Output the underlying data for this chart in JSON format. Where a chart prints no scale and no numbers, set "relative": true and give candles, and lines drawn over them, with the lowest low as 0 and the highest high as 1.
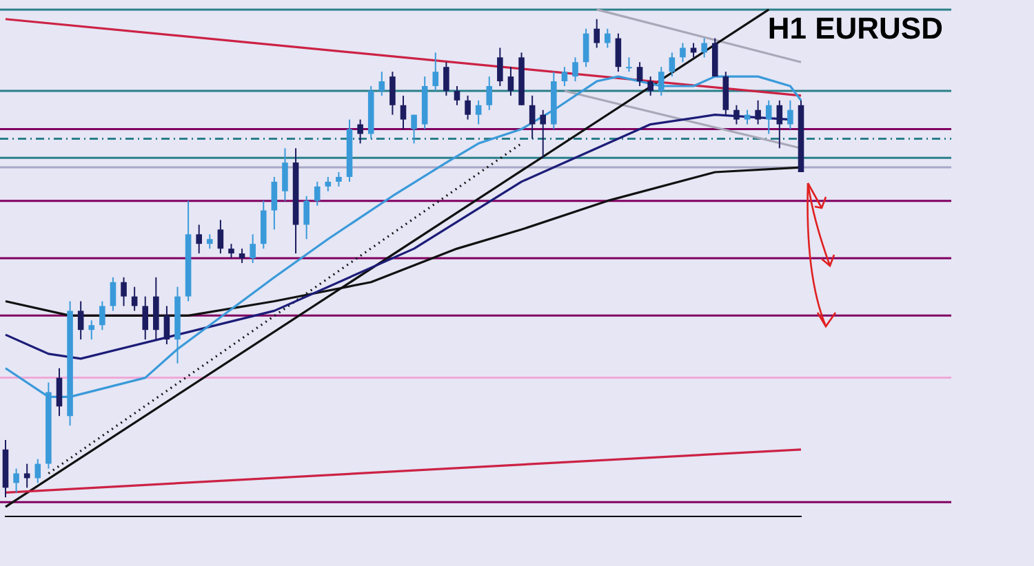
{
  "chart_data": {
    "type": "candlestick",
    "title": "H1 EURUSD",
    "relative": true,
    "tick_labels": false,
    "grid": false,
    "legend": false,
    "categories": [
      null,
      null,
      null,
      null,
      null,
      null,
      null,
      null,
      null,
      null,
      null,
      null,
      null,
      null,
      null,
      null,
      null,
      null,
      null,
      null,
      null,
      null,
      null,
      null,
      null,
      null,
      null,
      null,
      null,
      null,
      null,
      null,
      null,
      null,
      null,
      null,
      null,
      null,
      null,
      null,
      null,
      null,
      null,
      null,
      null,
      null,
      null,
      null,
      null,
      null,
      null,
      null,
      null,
      null,
      null,
      null,
      null,
      null,
      null,
      null,
      null,
      null,
      null,
      null,
      null,
      null,
      null,
      null,
      null,
      null,
      null,
      null,
      null,
      null,
      null
    ],
    "ohlc": [
      [
        0.1,
        0.12,
        0,
        0.02
      ],
      [
        0.03,
        0.06,
        0.01,
        0.05
      ],
      [
        0.05,
        0.07,
        0.02,
        0.04
      ],
      [
        0.04,
        0.08,
        0.03,
        0.07
      ],
      [
        0.07,
        0.24,
        0.06,
        0.22
      ],
      [
        0.25,
        0.27,
        0.17,
        0.19
      ],
      [
        0.17,
        0.41,
        0.15,
        0.39
      ],
      [
        0.39,
        0.41,
        0.33,
        0.35
      ],
      [
        0.35,
        0.37,
        0.33,
        0.36
      ],
      [
        0.36,
        0.41,
        0.35,
        0.4
      ],
      [
        0.4,
        0.46,
        0.39,
        0.45
      ],
      [
        0.45,
        0.46,
        0.4,
        0.42
      ],
      [
        0.42,
        0.44,
        0.39,
        0.4
      ],
      [
        0.4,
        0.42,
        0.33,
        0.35
      ],
      [
        0.42,
        0.46,
        0.33,
        0.35
      ],
      [
        0.38,
        0.4,
        0.32,
        0.33
      ],
      [
        0.33,
        0.44,
        0.28,
        0.42
      ],
      [
        0.42,
        0.62,
        0.41,
        0.55
      ],
      [
        0.55,
        0.57,
        0.51,
        0.53
      ],
      [
        0.53,
        0.55,
        0.52,
        0.54
      ],
      [
        0.56,
        0.58,
        0.51,
        0.52
      ],
      [
        0.52,
        0.53,
        0.5,
        0.51
      ],
      [
        0.51,
        0.52,
        0.49,
        0.5
      ],
      [
        0.5,
        0.55,
        0.49,
        0.53
      ],
      [
        0.53,
        0.62,
        0.52,
        0.6
      ],
      [
        0.6,
        0.67,
        0.56,
        0.66
      ],
      [
        0.64,
        0.73,
        0.62,
        0.7
      ],
      [
        0.7,
        0.73,
        0.51,
        0.57
      ],
      [
        0.57,
        0.63,
        0.54,
        0.62
      ],
      [
        0.62,
        0.66,
        0.61,
        0.65
      ],
      [
        0.65,
        0.67,
        0.64,
        0.66
      ],
      [
        0.66,
        0.68,
        0.65,
        0.67
      ],
      [
        0.67,
        0.79,
        0.66,
        0.77
      ],
      [
        0.78,
        0.79,
        0.74,
        0.76
      ],
      [
        0.76,
        0.86,
        0.75,
        0.85
      ],
      [
        0.85,
        0.89,
        0.84,
        0.87
      ],
      [
        0.88,
        0.89,
        0.8,
        0.82
      ],
      [
        0.82,
        0.84,
        0.77,
        0.79
      ],
      [
        0.77,
        0.8,
        0.74,
        0.8
      ],
      [
        0.78,
        0.88,
        0.77,
        0.86
      ],
      [
        0.86,
        0.93,
        0.85,
        0.89
      ],
      [
        0.9,
        0.91,
        0.84,
        0.85
      ],
      [
        0.85,
        0.86,
        0.82,
        0.83
      ],
      [
        0.83,
        0.84,
        0.79,
        0.8
      ],
      [
        0.8,
        0.83,
        0.78,
        0.82
      ],
      [
        0.82,
        0.88,
        0.81,
        0.86
      ],
      [
        0.92,
        0.94,
        0.86,
        0.87
      ],
      [
        0.88,
        0.9,
        0.84,
        0.85
      ],
      [
        0.92,
        0.93,
        0.82,
        0.82
      ],
      [
        0.82,
        0.84,
        0.75,
        0.78
      ],
      [
        0.8,
        0.81,
        0.71,
        0.78
      ],
      [
        0.78,
        0.89,
        0.77,
        0.87
      ],
      [
        0.87,
        0.9,
        0.86,
        0.89
      ],
      [
        0.88,
        0.92,
        0.87,
        0.91
      ],
      [
        0.91,
        0.98,
        0.9,
        0.97
      ],
      [
        0.98,
        1.0,
        0.94,
        0.95
      ],
      [
        0.95,
        0.98,
        0.94,
        0.97
      ],
      [
        0.96,
        0.97,
        0.89,
        0.9
      ],
      [
        0.9,
        0.92,
        0.89,
        0.9
      ],
      [
        0.9,
        0.91,
        0.86,
        0.87
      ],
      [
        0.87,
        0.88,
        0.84,
        0.85
      ],
      [
        0.85,
        0.9,
        0.84,
        0.89
      ],
      [
        0.89,
        0.93,
        0.88,
        0.92
      ],
      [
        0.92,
        0.95,
        0.91,
        0.94
      ],
      [
        0.94,
        0.95,
        0.92,
        0.93
      ],
      [
        0.93,
        0.96,
        0.92,
        0.95
      ],
      [
        0.95,
        0.96,
        0.88,
        0.88
      ],
      [
        0.88,
        0.89,
        0.8,
        0.81
      ],
      [
        0.81,
        0.82,
        0.78,
        0.79
      ],
      [
        0.79,
        0.81,
        0.78,
        0.8
      ],
      [
        0.81,
        0.83,
        0.78,
        0.79
      ],
      [
        0.79,
        0.83,
        0.76,
        0.82
      ],
      [
        0.82,
        0.83,
        0.73,
        0.78
      ],
      [
        0.78,
        0.83,
        0.77,
        0.81
      ],
      [
        0.82,
        0.83,
        0.68,
        0.68
      ]
    ],
    "series": [
      {
        "type": "line",
        "color": "#3a9ad9",
        "line_style": "solid",
        "values": [
          0.27,
          null,
          null,
          null,
          0.21,
          null,
          0.21,
          null,
          null,
          null,
          null,
          null,
          null,
          0.25,
          null,
          null,
          0.31,
          null,
          null,
          null,
          null,
          null,
          null,
          null,
          null,
          0.46,
          null,
          null,
          null,
          null,
          0.54,
          null,
          null,
          null,
          null,
          null,
          0.63,
          null,
          null,
          null,
          null,
          0.7,
          null,
          null,
          0.74,
          null,
          null,
          null,
          0.77,
          null,
          null,
          0.81,
          null,
          null,
          null,
          0.87,
          null,
          0.88,
          null,
          null,
          null,
          0.86,
          null,
          null,
          0.86,
          null,
          0.88,
          null,
          null,
          null,
          0.88,
          null,
          null,
          0.86,
          0.83
        ]
      },
      {
        "type": "line",
        "color": "#1c1c78",
        "line_style": "solid",
        "values": [
          0.34,
          null,
          null,
          null,
          0.3,
          null,
          null,
          0.29,
          null,
          null,
          null,
          null,
          null,
          null,
          null,
          null,
          0.34,
          null,
          null,
          null,
          null,
          null,
          null,
          null,
          null,
          0.39,
          null,
          null,
          null,
          null,
          null,
          null,
          null,
          null,
          null,
          null,
          null,
          null,
          0.52,
          null,
          null,
          null,
          null,
          null,
          null,
          null,
          null,
          null,
          0.66,
          null,
          null,
          null,
          null,
          null,
          null,
          null,
          null,
          null,
          null,
          null,
          0.78,
          null,
          null,
          null,
          null,
          null,
          0.8,
          null,
          null,
          null,
          null,
          null,
          null,
          0.79,
          null
        ]
      },
      {
        "type": "line",
        "color": "#111111",
        "line_style": "solid",
        "values": [
          0.41,
          null,
          null,
          null,
          null,
          null,
          0.38,
          null,
          null,
          null,
          null,
          null,
          null,
          null,
          null,
          null,
          null,
          0.38,
          null,
          null,
          null,
          null,
          null,
          null,
          null,
          0.41,
          null,
          null,
          null,
          null,
          null,
          null,
          null,
          null,
          0.45,
          null,
          null,
          null,
          null,
          null,
          null,
          null,
          0.52,
          null,
          null,
          null,
          null,
          null,
          0.56,
          null,
          null,
          null,
          null,
          null,
          null,
          null,
          0.62,
          null,
          null,
          null,
          null,
          null,
          null,
          null,
          null,
          null,
          0.68,
          null,
          null,
          null,
          null,
          null,
          null,
          null,
          0.69
        ]
      },
      {
        "type": "line",
        "color": "#cc2244",
        "line_style": "solid",
        "values": [
          1.0,
          null,
          null,
          null,
          null,
          null,
          null,
          null,
          null,
          null,
          null,
          null,
          null,
          null,
          null,
          null,
          null,
          null,
          null,
          null,
          null,
          null,
          null,
          null,
          null,
          null,
          null,
          null,
          null,
          null,
          null,
          null,
          null,
          null,
          null,
          null,
          null,
          null,
          null,
          null,
          null,
          null,
          null,
          null,
          null,
          null,
          null,
          null,
          null,
          null,
          null,
          null,
          null,
          null,
          null,
          null,
          null,
          null,
          null,
          null,
          null,
          null,
          null,
          null,
          null,
          null,
          null,
          null,
          null,
          null,
          null,
          null,
          null,
          null,
          0.84
        ]
      },
      {
        "type": "line",
        "color": "#cc2244",
        "line_style": "solid",
        "values": [
          0.01,
          null,
          null,
          null,
          null,
          null,
          null,
          null,
          null,
          null,
          null,
          null,
          null,
          null,
          null,
          null,
          null,
          null,
          null,
          null,
          null,
          null,
          null,
          null,
          null,
          null,
          null,
          null,
          null,
          null,
          null,
          null,
          null,
          null,
          null,
          null,
          null,
          null,
          null,
          null,
          null,
          null,
          null,
          null,
          null,
          null,
          null,
          null,
          null,
          null,
          null,
          null,
          null,
          null,
          null,
          null,
          null,
          null,
          null,
          null,
          null,
          null,
          null,
          null,
          null,
          null,
          null,
          null,
          null,
          null,
          null,
          null,
          null,
          null,
          0.1
        ]
      },
      {
        "type": "line",
        "color": "#111111",
        "line_style": "solid",
        "values": [
          -0.02,
          null,
          null,
          null,
          null,
          null,
          null,
          null,
          null,
          null,
          null,
          null,
          null,
          null,
          null,
          null,
          null,
          null,
          null,
          null,
          null,
          null,
          null,
          null,
          null,
          null,
          null,
          null,
          null,
          null,
          null,
          null,
          null,
          null,
          null,
          null,
          null,
          null,
          null,
          null,
          null,
          null,
          null,
          null,
          null,
          null,
          null,
          null,
          null,
          null,
          null,
          null,
          null,
          null,
          null,
          null,
          null,
          null,
          null,
          null,
          null,
          null,
          null,
          null,
          null,
          null,
          null,
          null,
          null,
          null,
          null,
          1.02,
          null,
          null,
          null
        ]
      },
      {
        "type": "line",
        "color": "#111111",
        "line_style": "dotted",
        "values": [
          null,
          null,
          null,
          null,
          0.05,
          null,
          null,
          null,
          null,
          null,
          null,
          null,
          null,
          null,
          null,
          null,
          null,
          null,
          null,
          null,
          null,
          null,
          null,
          null,
          null,
          null,
          null,
          null,
          null,
          null,
          null,
          null,
          null,
          null,
          null,
          null,
          null,
          null,
          null,
          null,
          null,
          null,
          null,
          null,
          null,
          null,
          null,
          null,
          0.74,
          null,
          null,
          null,
          null,
          null,
          null,
          null,
          null,
          null,
          null,
          null,
          null,
          null,
          null,
          null,
          null,
          null,
          null,
          null,
          null,
          null,
          null,
          null,
          null,
          null,
          null
        ]
      },
      {
        "type": "line",
        "color": "#a8a8b8",
        "line_style": "solid",
        "values": [
          null,
          null,
          null,
          null,
          null,
          null,
          null,
          null,
          null,
          null,
          null,
          null,
          null,
          null,
          null,
          null,
          null,
          null,
          null,
          null,
          null,
          null,
          null,
          null,
          null,
          null,
          null,
          null,
          null,
          null,
          null,
          null,
          null,
          null,
          null,
          null,
          null,
          null,
          null,
          null,
          null,
          null,
          null,
          null,
          null,
          null,
          null,
          null,
          null,
          null,
          null,
          null,
          null,
          null,
          null,
          1.02,
          null,
          null,
          null,
          null,
          null,
          null,
          null,
          null,
          null,
          null,
          null,
          null,
          null,
          null,
          null,
          null,
          null,
          null,
          0.91
        ]
      },
      {
        "type": "line",
        "color": "#a8a8b8",
        "line_style": "solid",
        "values": [
          null,
          null,
          null,
          null,
          null,
          null,
          null,
          null,
          null,
          null,
          null,
          null,
          null,
          null,
          null,
          null,
          null,
          null,
          null,
          null,
          null,
          null,
          null,
          null,
          null,
          null,
          null,
          null,
          null,
          null,
          null,
          null,
          null,
          null,
          null,
          null,
          null,
          null,
          null,
          null,
          null,
          null,
          null,
          null,
          null,
          null,
          null,
          null,
          null,
          null,
          null,
          null,
          0.85,
          null,
          null,
          null,
          null,
          null,
          null,
          null,
          null,
          null,
          null,
          null,
          null,
          null,
          null,
          null,
          null,
          null,
          null,
          null,
          null,
          null,
          0.73
        ]
      }
    ],
    "ref_lines": [
      {
        "axis": "y",
        "value": 1.02,
        "color": "#2a7f8a"
      },
      {
        "axis": "y",
        "value": 0.85,
        "color": "#2a7f8a"
      },
      {
        "axis": "y",
        "value": 0.77,
        "color": "#800060"
      },
      {
        "axis": "y",
        "value": 0.75,
        "color": "#2a7f8a",
        "line_style": "dashed"
      },
      {
        "axis": "y",
        "value": 0.71,
        "color": "#2a7f8a"
      },
      {
        "axis": "y",
        "value": 0.69,
        "color": "#a8a8c8"
      },
      {
        "axis": "y",
        "value": 0.62,
        "color": "#800060"
      },
      {
        "axis": "y",
        "value": 0.5,
        "color": "#800060"
      },
      {
        "axis": "y",
        "value": 0.38,
        "color": "#800060"
      },
      {
        "axis": "y",
        "value": 0.25,
        "color": "#f0a8d8"
      },
      {
        "axis": "y",
        "value": -0.01,
        "color": "#800060"
      }
    ]
  }
}
